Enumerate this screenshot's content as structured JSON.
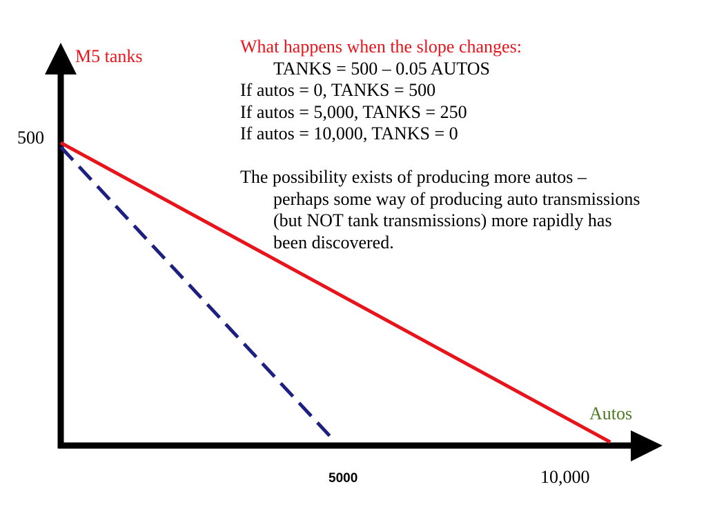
{
  "chart_data": {
    "type": "line",
    "ylabel": "M5 tanks",
    "xlabel": "Autos",
    "xlim": [
      0,
      10900
    ],
    "ylim": [
      0,
      500
    ],
    "y_ticks": [
      {
        "value": 500,
        "label": "500"
      }
    ],
    "x_ticks": [
      {
        "value": 5000,
        "label": "5000"
      },
      {
        "value": 10000,
        "label": "10,000"
      }
    ],
    "grid": false,
    "series": [
      {
        "style": "solid",
        "color": "#e8141b",
        "x": [
          0,
          10000
        ],
        "y": [
          500,
          0
        ]
      },
      {
        "style": "dashed",
        "color": "#1d2080",
        "x": [
          0,
          5000
        ],
        "y": [
          500,
          0
        ]
      }
    ]
  },
  "colors": {
    "axis": "#000000",
    "ylabel": "#e8141b",
    "xlabel": "#4e7a22",
    "heading": "#e8141b",
    "body_text": "#000000"
  },
  "annotation": {
    "heading": "What happens when the slope changes:",
    "equation": "TANKS = 500 – 0.05 AUTOS",
    "cases": [
      "If autos = 0, TANKS = 500",
      "If autos = 5,000, TANKS = 250",
      "If autos = 10,000, TANKS = 0"
    ],
    "explanation_lines": [
      "The  possibility exists of producing more autos –",
      "perhaps some way of producing auto transmissions",
      "(but NOT tank transmissions) more rapidly has",
      "been discovered."
    ]
  }
}
